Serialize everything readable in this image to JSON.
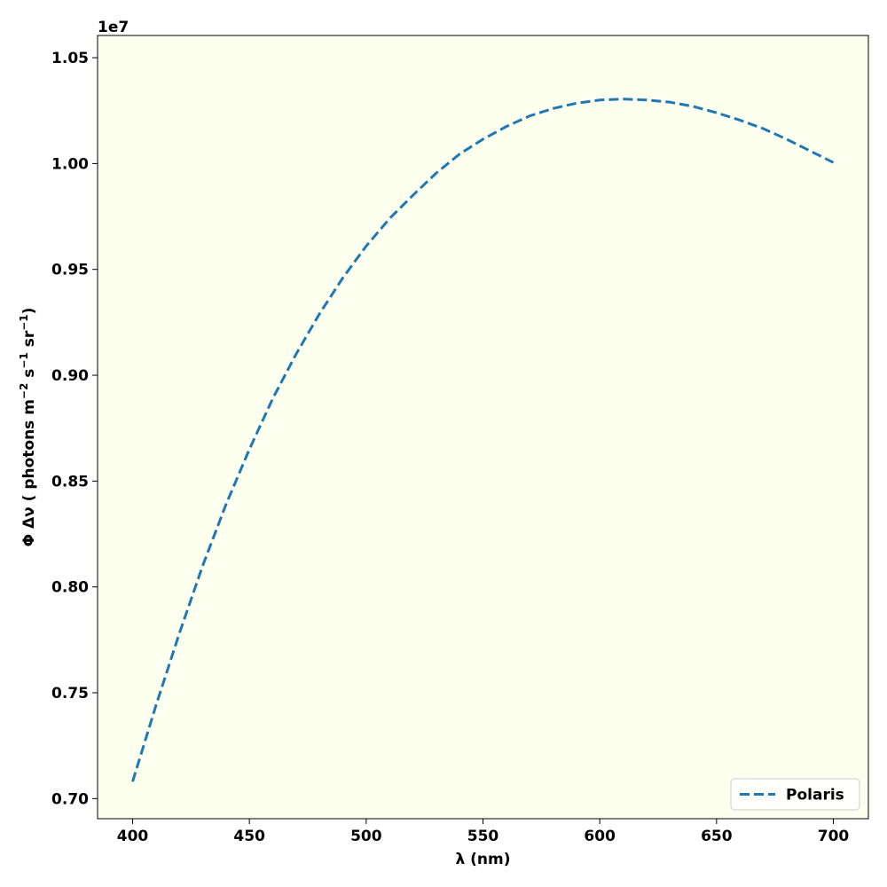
{
  "chart_data": {
    "type": "line",
    "xlabel": "λ (nm)",
    "ylabel_parts": [
      "Φ Δν ( photons m",
      "−2",
      " s",
      "−1",
      " sr",
      "−1",
      ")"
    ],
    "offset_label": "1e7",
    "xlim": [
      385,
      715
    ],
    "ylim": [
      0.6905,
      1.0605
    ],
    "x_ticks": [
      400,
      450,
      500,
      550,
      600,
      650,
      700
    ],
    "x_tick_labels": [
      "400",
      "450",
      "500",
      "550",
      "600",
      "650",
      "700"
    ],
    "y_ticks": [
      0.7,
      0.75,
      0.8,
      0.85,
      0.9,
      0.95,
      1.0,
      1.05
    ],
    "y_tick_labels": [
      "0.70",
      "0.75",
      "0.80",
      "0.85",
      "0.90",
      "0.95",
      "1.00",
      "1.05"
    ],
    "grid": false,
    "legend_position": "bottom-right",
    "background_color": "#fdffef",
    "series": [
      {
        "name": "Polaris",
        "color": "#1f77b4",
        "line_style": "dashed",
        "x": [
          400,
          410,
          420,
          430,
          440,
          450,
          460,
          470,
          480,
          490,
          500,
          510,
          520,
          530,
          540,
          550,
          560,
          570,
          580,
          590,
          600,
          610,
          620,
          630,
          640,
          650,
          660,
          670,
          680,
          690,
          700
        ],
        "y": [
          0.708,
          0.744,
          0.778,
          0.81,
          0.839,
          0.865,
          0.889,
          0.91,
          0.929,
          0.946,
          0.961,
          0.974,
          0.985,
          0.9955,
          1.0045,
          1.0115,
          1.0175,
          1.0225,
          1.026,
          1.0285,
          1.03,
          1.0305,
          1.03,
          1.029,
          1.027,
          1.024,
          1.0205,
          1.0165,
          1.0115,
          1.006,
          1.0005
        ]
      }
    ]
  }
}
